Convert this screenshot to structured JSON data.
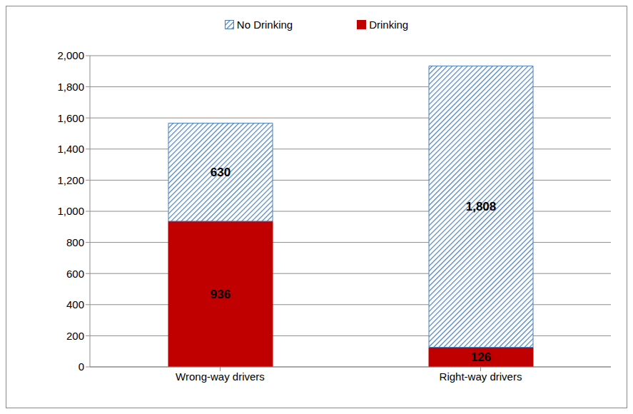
{
  "chart_data": {
    "type": "bar",
    "stacked": true,
    "categories": [
      "Wrong-way drivers",
      "Right-way drivers"
    ],
    "series": [
      {
        "name": "No Drinking",
        "color": "#4a7ebb",
        "values": [
          630,
          1808
        ],
        "value_labels": [
          "630",
          "1,808"
        ]
      },
      {
        "name": "Drinking",
        "color": "#c00000",
        "values": [
          936,
          126
        ]
      }
    ],
    "ylim": [
      0,
      2000
    ],
    "yticks": [
      0,
      200,
      400,
      600,
      800,
      {
        "value": 1000,
        "label": "1,000"
      },
      {
        "value": 1200,
        "label": "1,200"
      },
      {
        "value": 1400,
        "label": "1,400"
      },
      {
        "value": 1600,
        "label": "1,600"
      },
      {
        "value": 1800,
        "label": "1,800"
      },
      {
        "value": 2000,
        "label": "2,000"
      }
    ],
    "grid": true,
    "data_labels": true,
    "legend": "top"
  }
}
